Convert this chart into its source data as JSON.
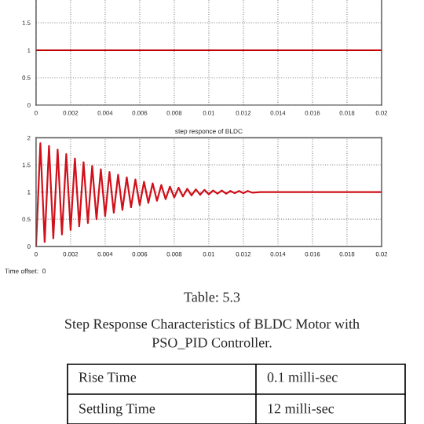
{
  "chart_data": [
    {
      "type": "line",
      "series": [
        {
          "color": "#c00000",
          "x": [
            0,
            0.02
          ],
          "values": [
            1,
            1
          ]
        }
      ],
      "xlim": [
        0,
        0.02
      ],
      "ylim": [
        0,
        2
      ],
      "xticks": [
        0,
        0.002,
        0.004,
        0.006,
        0.008,
        0.01,
        0.012,
        0.014,
        0.016,
        0.018,
        0.02
      ],
      "yticks": [
        0,
        0.5,
        1,
        1.5
      ],
      "grid": true
    },
    {
      "type": "line",
      "title": "step responce of BLDC",
      "series": [
        {
          "color": "#d0101a",
          "x": [
            0,
            0.00025,
            0.0005,
            0.00075,
            0.001,
            0.00125,
            0.0015,
            0.00175,
            0.002,
            0.00225,
            0.0025,
            0.00275,
            0.003,
            0.00325,
            0.0035,
            0.00375,
            0.004,
            0.00425,
            0.0045,
            0.00475,
            0.005,
            0.00525,
            0.0055,
            0.00575,
            0.006,
            0.00625,
            0.0065,
            0.00675,
            0.007,
            0.00725,
            0.0075,
            0.00775,
            0.008,
            0.00825,
            0.0085,
            0.00875,
            0.009,
            0.00925,
            0.0095,
            0.00975,
            0.01,
            0.01025,
            0.0105,
            0.01075,
            0.011,
            0.01125,
            0.0115,
            0.01175,
            0.012,
            0.01225,
            0.0125,
            0.013,
            0.02
          ],
          "values": [
            0,
            1.9,
            0.08,
            1.85,
            0.15,
            1.78,
            0.22,
            1.7,
            0.3,
            1.62,
            0.37,
            1.55,
            0.43,
            1.48,
            0.5,
            1.42,
            0.56,
            1.37,
            0.62,
            1.32,
            0.67,
            1.27,
            0.72,
            1.23,
            0.76,
            1.19,
            0.8,
            1.16,
            0.84,
            1.13,
            0.87,
            1.1,
            0.9,
            1.08,
            0.92,
            1.06,
            0.94,
            1.05,
            0.95,
            1.04,
            0.96,
            1.03,
            0.97,
            1.03,
            0.97,
            1.02,
            0.98,
            1.02,
            0.98,
            1.02,
            0.99,
            1.0,
            1.0
          ]
        }
      ],
      "xlim": [
        0,
        0.02
      ],
      "ylim": [
        0,
        2
      ],
      "xticks": [
        0,
        0.002,
        0.004,
        0.006,
        0.008,
        0.01,
        0.012,
        0.014,
        0.016,
        0.018,
        0.02
      ],
      "yticks": [
        0,
        0.5,
        1,
        1.5,
        2
      ],
      "grid": true,
      "annotations": [
        "Time offset:  0",
        "Table: 5.3",
        "Step Response Characteristics of BLDC Motor with",
        "PSO_PID Controller.",
        "Rise Time",
        "0.1 milli-sec",
        "Settling Time",
        "12 milli-sec"
      ]
    }
  ]
}
